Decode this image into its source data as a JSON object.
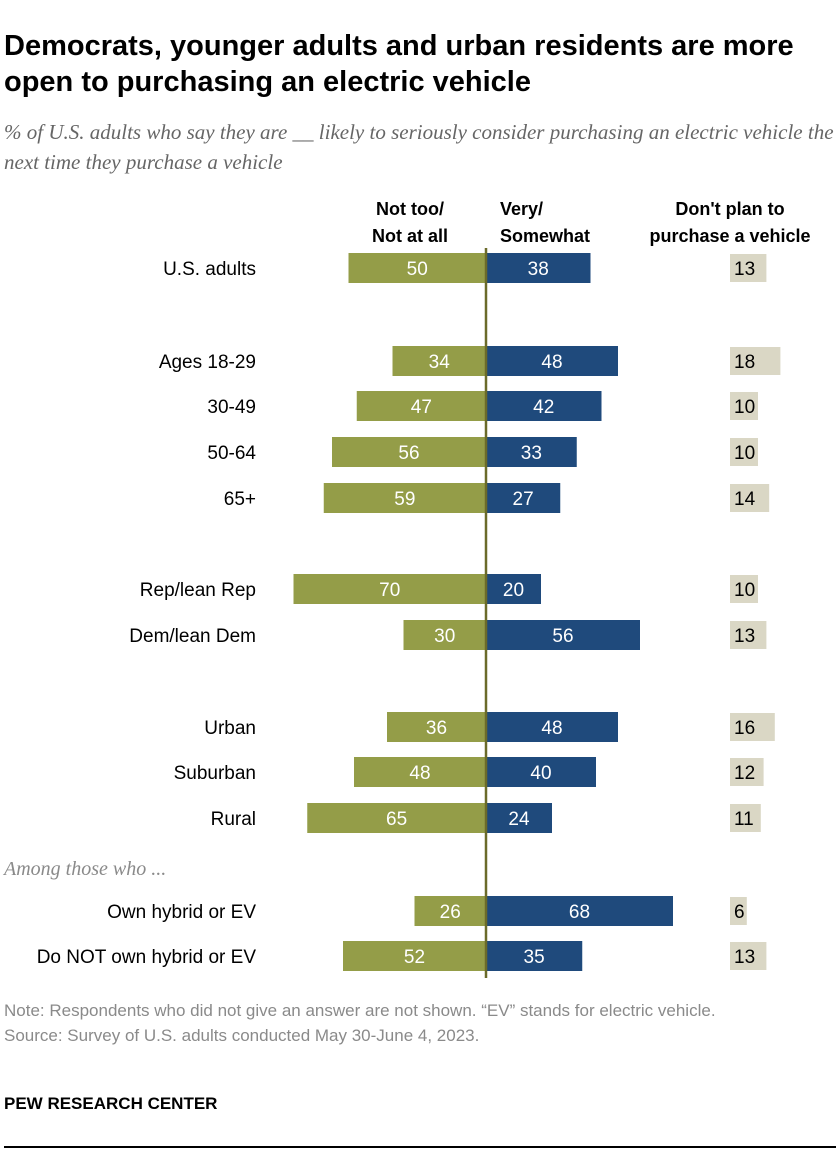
{
  "title": "Democrats, younger adults and urban residents are more open to purchasing an electric vehicle",
  "subtitle": "% of U.S. adults who say they are __ likely to seriously consider purchasing an electric vehicle the next time they purchase a vehicle",
  "chart_data": {
    "type": "bar",
    "orientation": "horizontal-diverging",
    "columns": [
      "Not too/ Not at all",
      "Very/ Somewhat",
      "Don't plan to purchase a vehicle"
    ],
    "column_lines": [
      [
        "Not too/",
        "Not at all"
      ],
      [
        "Very/",
        "Somewhat"
      ],
      [
        "Don't plan to",
        "purchase a vehicle"
      ]
    ],
    "categories": [
      "U.S. adults",
      "Ages 18-29",
      "30-49",
      "50-64",
      "65+",
      "Rep/lean Rep",
      "Dem/lean Dem",
      "Urban",
      "Suburban",
      "Rural",
      "Own hybrid or EV",
      "Do NOT own hybrid or EV"
    ],
    "group_label": "Among those who ...",
    "series": [
      {
        "name": "Not too/ Not at all",
        "color": "#949d48",
        "values": [
          50,
          34,
          47,
          56,
          59,
          70,
          30,
          36,
          48,
          65,
          26,
          52
        ]
      },
      {
        "name": "Very/ Somewhat",
        "color": "#1f4a7c",
        "values": [
          38,
          48,
          42,
          33,
          27,
          20,
          56,
          48,
          40,
          24,
          68,
          35
        ]
      },
      {
        "name": "Don't plan to purchase a vehicle",
        "color": "#dad7c5",
        "values": [
          13,
          18,
          10,
          10,
          14,
          10,
          13,
          16,
          12,
          11,
          6,
          13
        ]
      }
    ],
    "divider_color": "#6b6b2a"
  },
  "note": "Note: Respondents who did not give an answer are not shown. “EV” stands for electric vehicle.",
  "source": "Source: Survey of U.S. adults conducted May 30-June 4, 2023.",
  "brand": "PEW RESEARCH CENTER"
}
